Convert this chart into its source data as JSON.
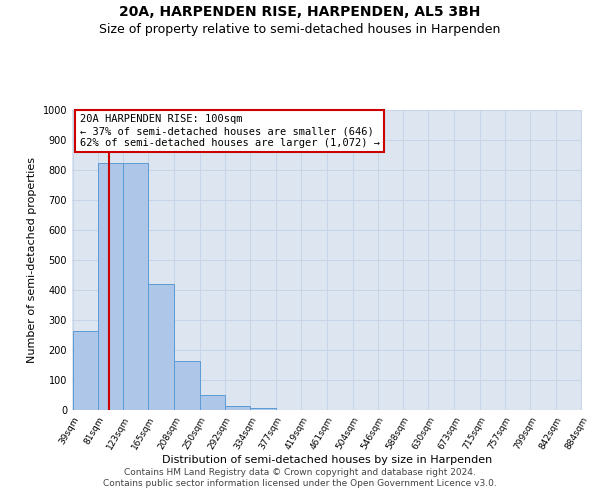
{
  "title": "20A, HARPENDEN RISE, HARPENDEN, AL5 3BH",
  "subtitle": "Size of property relative to semi-detached houses in Harpenden",
  "xlabel": "Distribution of semi-detached houses by size in Harpenden",
  "ylabel": "Number of semi-detached properties",
  "footer_line1": "Contains HM Land Registry data © Crown copyright and database right 2024.",
  "footer_line2": "Contains public sector information licensed under the Open Government Licence v3.0.",
  "annotation_line1": "20A HARPENDEN RISE: 100sqm",
  "annotation_line2": "← 37% of semi-detached houses are smaller (646)",
  "annotation_line3": "62% of semi-detached houses are larger (1,072) →",
  "bar_edges": [
    39,
    81,
    123,
    165,
    208,
    250,
    292,
    334,
    377,
    419,
    461,
    504,
    546,
    588,
    630,
    673,
    715,
    757,
    799,
    842,
    884
  ],
  "bar_values": [
    265,
    825,
    825,
    420,
    165,
    50,
    12,
    8,
    0,
    0,
    0,
    0,
    0,
    0,
    0,
    0,
    0,
    0,
    0,
    0
  ],
  "bar_color": "#aec6e8",
  "bar_edge_color": "#5b9bd5",
  "red_line_x": 100,
  "ylim": [
    0,
    1000
  ],
  "yticks": [
    0,
    100,
    200,
    300,
    400,
    500,
    600,
    700,
    800,
    900,
    1000
  ],
  "annotation_box_color": "#ffffff",
  "annotation_box_edge_color": "#cc0000",
  "grid_color": "#c8d4e8",
  "background_color": "#dde6f0",
  "title_fontsize": 10,
  "subtitle_fontsize": 9,
  "axis_label_fontsize": 8,
  "tick_fontsize": 7,
  "annotation_fontsize": 7.5,
  "footer_fontsize": 6.5
}
